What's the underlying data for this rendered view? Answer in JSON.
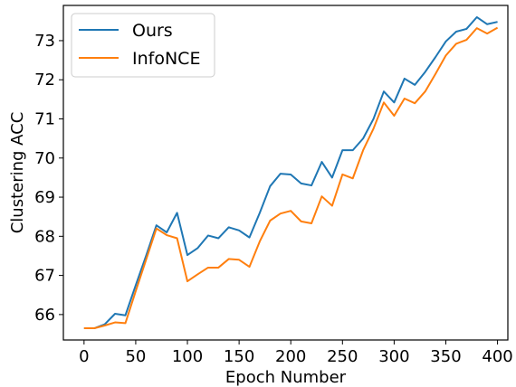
{
  "chart_data": {
    "type": "line",
    "title": "",
    "xlabel": "Epoch Number",
    "ylabel": "Clustering ACC",
    "xlim": [
      -20,
      410
    ],
    "ylim": [
      65.35,
      73.9
    ],
    "xticks": [
      0,
      50,
      100,
      150,
      200,
      250,
      300,
      350,
      400
    ],
    "yticks": [
      66,
      67,
      68,
      69,
      70,
      71,
      72,
      73
    ],
    "grid": false,
    "legend_position": "top-left",
    "x": [
      0,
      10,
      20,
      30,
      40,
      50,
      60,
      70,
      80,
      90,
      100,
      110,
      120,
      130,
      140,
      150,
      160,
      170,
      180,
      190,
      200,
      210,
      220,
      230,
      240,
      250,
      260,
      270,
      280,
      290,
      300,
      310,
      320,
      330,
      340,
      350,
      360,
      370,
      380,
      390,
      400
    ],
    "series": [
      {
        "name": "Ours",
        "color": "#1f77b4",
        "values": [
          65.65,
          65.65,
          65.75,
          66.02,
          65.98,
          66.75,
          67.5,
          68.28,
          68.1,
          68.6,
          67.52,
          67.7,
          68.02,
          67.95,
          68.23,
          68.15,
          67.97,
          68.6,
          69.28,
          69.6,
          69.58,
          69.35,
          69.3,
          69.9,
          69.5,
          70.2,
          70.2,
          70.5,
          71.0,
          71.7,
          71.42,
          72.03,
          71.87,
          72.2,
          72.58,
          72.98,
          73.23,
          73.3,
          73.6,
          73.42,
          73.48
        ]
      },
      {
        "name": "InfoNCE",
        "color": "#ff7f0e",
        "values": [
          65.65,
          65.65,
          65.72,
          65.8,
          65.78,
          66.6,
          67.4,
          68.2,
          68.03,
          67.95,
          66.85,
          67.03,
          67.2,
          67.2,
          67.42,
          67.4,
          67.22,
          67.87,
          68.4,
          68.58,
          68.65,
          68.38,
          68.33,
          69.02,
          68.78,
          69.58,
          69.48,
          70.2,
          70.75,
          71.42,
          71.08,
          71.52,
          71.4,
          71.7,
          72.15,
          72.62,
          72.92,
          73.02,
          73.32,
          73.18,
          73.33
        ]
      }
    ]
  }
}
